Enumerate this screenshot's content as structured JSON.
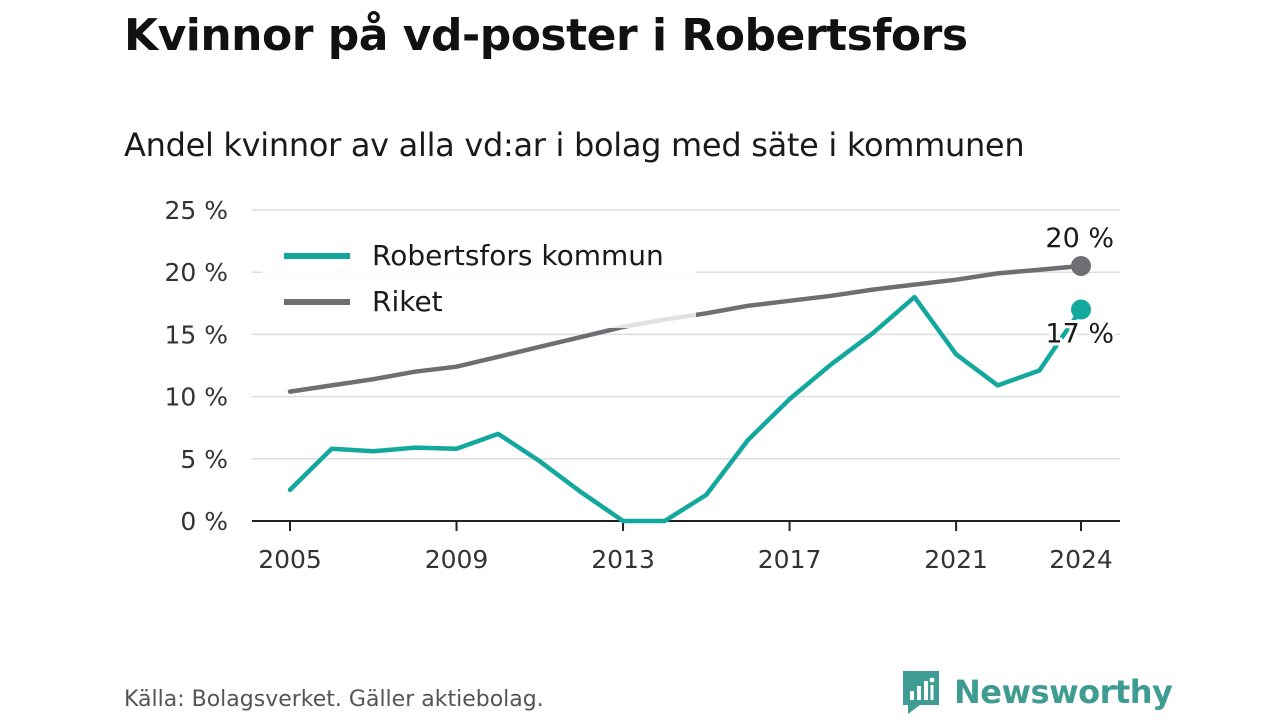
{
  "title": "Kvinnor på vd-poster i Robertsfors",
  "subtitle": "Andel kvinnor av alla vd:ar i bolag med säte i kommunen",
  "source": "Källa: Bolagsverket. Gäller aktiebolag.",
  "brand": {
    "name": "Newsworthy",
    "icon": "newsworthy-logo-icon",
    "color": "#3f9c92"
  },
  "chart_data": {
    "type": "line",
    "x": [
      2005,
      2006,
      2007,
      2008,
      2009,
      2010,
      2011,
      2012,
      2013,
      2014,
      2015,
      2016,
      2017,
      2018,
      2019,
      2020,
      2021,
      2022,
      2023,
      2024
    ],
    "x_ticks": [
      "2005",
      "2009",
      "2013",
      "2017",
      "2021",
      "2024"
    ],
    "y_ticks": [
      "0 %",
      "5 %",
      "10 %",
      "15 %",
      "20 %",
      "25 %"
    ],
    "ylim": [
      0,
      25
    ],
    "grid": true,
    "legend_position": "top-left",
    "series": [
      {
        "name": "Robertsfors kommun",
        "color": "#13a89e",
        "values": [
          2.5,
          5.8,
          5.6,
          5.9,
          5.8,
          7.0,
          4.8,
          2.3,
          0.0,
          0.0,
          2.1,
          6.5,
          9.8,
          12.6,
          15.1,
          18.0,
          13.4,
          10.9,
          12.1,
          17.0
        ],
        "end_label": "17 %"
      },
      {
        "name": "Riket",
        "color": "#6f6e73",
        "values": [
          10.4,
          10.9,
          11.4,
          12.0,
          12.4,
          13.2,
          14.0,
          14.8,
          15.6,
          16.2,
          16.7,
          17.3,
          17.7,
          18.1,
          18.6,
          19.0,
          19.4,
          19.9,
          20.2,
          20.5
        ],
        "end_label": "20 %"
      }
    ],
    "xlabel": "",
    "ylabel": ""
  }
}
